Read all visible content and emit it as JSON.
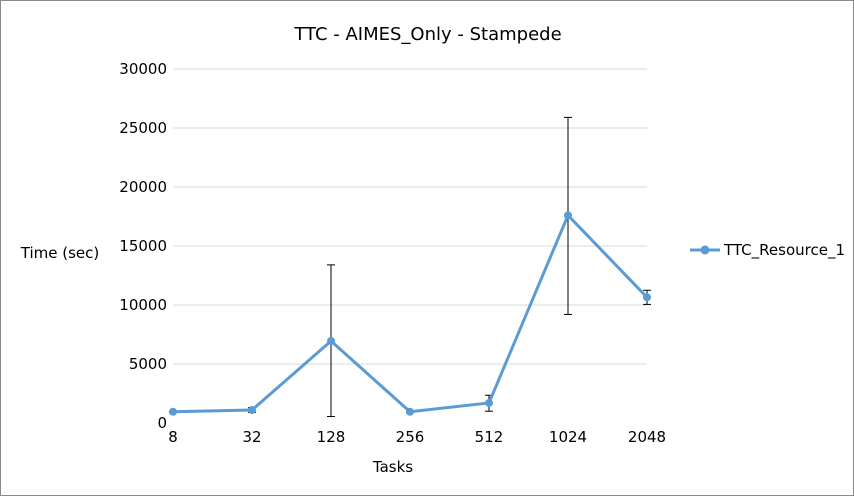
{
  "chart_data": {
    "type": "line",
    "title": "TTC - AIMES_Only - Stampede",
    "xlabel": "Tasks",
    "ylabel": "Time (sec)",
    "categories": [
      "8",
      "32",
      "128",
      "256",
      "512",
      "1024",
      "2048"
    ],
    "ylim": [
      0,
      30000
    ],
    "yticks": [
      0,
      5000,
      10000,
      15000,
      20000,
      25000,
      30000
    ],
    "grid": true,
    "legend_position": "right",
    "series": [
      {
        "name": "TTC_Resource_1",
        "color": "#5b9bd5",
        "values": [
          950,
          1100,
          6950,
          950,
          1700,
          17600,
          10650
        ],
        "error_low": [
          900,
          900,
          550,
          900,
          1000,
          9200,
          10050
        ],
        "error_high": [
          1000,
          1300,
          13400,
          1000,
          2350,
          25900,
          11250
        ]
      }
    ]
  }
}
